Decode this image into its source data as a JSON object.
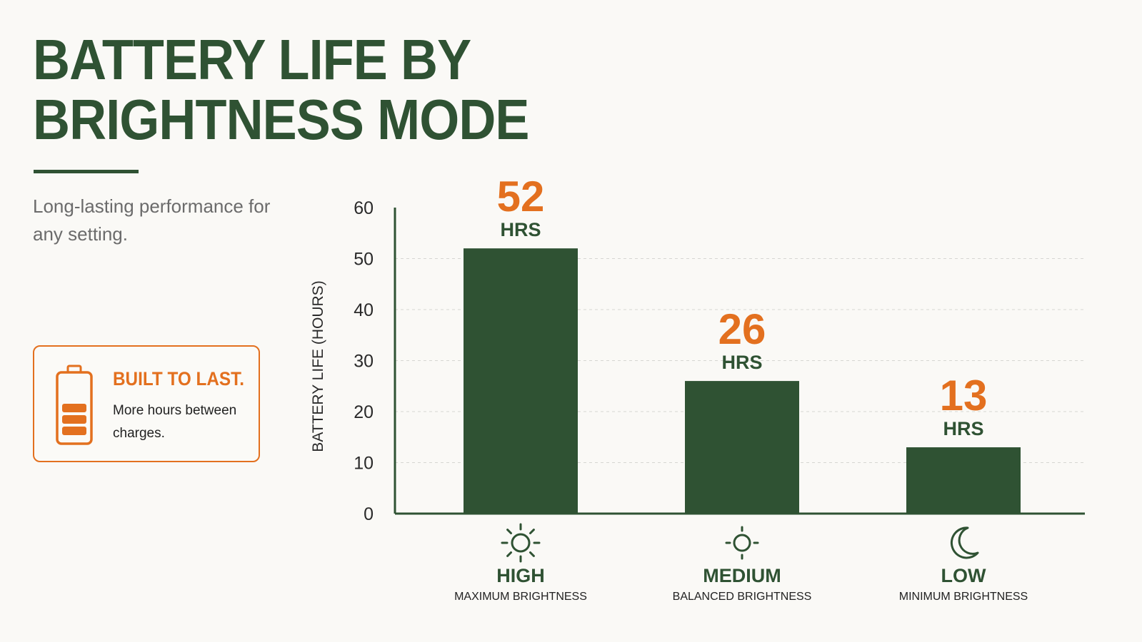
{
  "title_lines": [
    "BATTERY LIFE BY",
    "BRIGHTNESS MODE"
  ],
  "subtitle": "Long-lasting performance for any setting.",
  "callout": {
    "icon": "battery-icon",
    "heading": "BUILT TO LAST.",
    "body": "More hours between charges."
  },
  "colors": {
    "primary": "#2f5233",
    "accent": "#e3701f",
    "text_muted": "#6b6b6b",
    "background": "#faf9f6"
  },
  "categories_meta": [
    {
      "label": "HIGH",
      "sublabel": "MAXIMUM BRIGHTNESS",
      "icon": "sun-large-icon"
    },
    {
      "label": "MEDIUM",
      "sublabel": "BALANCED BRIGHTNESS",
      "icon": "sun-small-icon"
    },
    {
      "label": "LOW",
      "sublabel": "MINIMUM BRIGHTNESS",
      "icon": "moon-icon"
    }
  ],
  "chart_data": {
    "type": "bar",
    "categories": [
      "HIGH",
      "MEDIUM",
      "LOW"
    ],
    "values": [
      52,
      26,
      13
    ],
    "data_labels": [
      "52",
      "26",
      "13"
    ],
    "data_label_unit": "HRS",
    "ylabel": "BATTERY LIFE (HOURS)",
    "xlabel": "",
    "ylim": [
      0,
      60
    ],
    "yticks": [
      0,
      10,
      20,
      30,
      40,
      50,
      60
    ],
    "grid": "horizontal dashed"
  }
}
